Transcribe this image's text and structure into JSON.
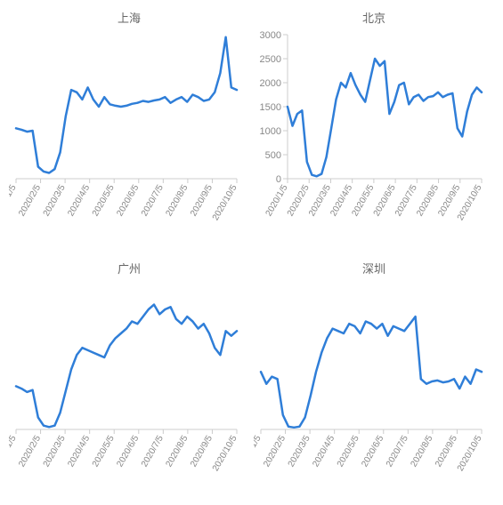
{
  "global": {
    "background_color": "#ffffff",
    "line_color": "#2f7ed8",
    "line_width": 2.5,
    "axis_color": "#cccccc",
    "label_color": "#888888",
    "title_color": "#666666",
    "title_fontsize": 13,
    "tick_fontsize": 11,
    "xlabel_fontsize": 10,
    "xlabel_rotation_deg": -60,
    "x_labels": [
      "2020/1/5",
      "2020/2/5",
      "2020/3/5",
      "2020/4/5",
      "2020/5/5",
      "2020/6/5",
      "2020/7/5",
      "2020/8/5",
      "2020/9/5",
      "2020/10/5"
    ]
  },
  "charts": [
    {
      "id": "shanghai",
      "title": "上海",
      "type": "line",
      "show_y_axis": false,
      "ylim": [
        0,
        3000
      ],
      "values": [
        1050,
        1020,
        980,
        1000,
        250,
        150,
        120,
        200,
        550,
        1300,
        1850,
        1800,
        1650,
        1900,
        1650,
        1500,
        1700,
        1550,
        1520,
        1500,
        1520,
        1560,
        1580,
        1620,
        1600,
        1630,
        1650,
        1700,
        1580,
        1650,
        1700,
        1600,
        1750,
        1700,
        1620,
        1650,
        1800,
        2200,
        2950,
        1900,
        1850
      ]
    },
    {
      "id": "beijing",
      "title": "北京",
      "type": "line",
      "show_y_axis": true,
      "ylim": [
        0,
        3000
      ],
      "ytick_step": 500,
      "values": [
        1500,
        1100,
        1350,
        1420,
        350,
        80,
        50,
        100,
        450,
        1050,
        1650,
        2000,
        1900,
        2200,
        1950,
        1750,
        1600,
        2050,
        2500,
        2350,
        2450,
        1350,
        1600,
        1950,
        2000,
        1550,
        1700,
        1750,
        1620,
        1700,
        1720,
        1800,
        1700,
        1750,
        1780,
        1050,
        880,
        1400,
        1750,
        1900,
        1800
      ]
    },
    {
      "id": "guangzhou",
      "title": "广州",
      "type": "line",
      "show_y_axis": false,
      "ylim": [
        0,
        3000
      ],
      "values": [
        900,
        850,
        780,
        820,
        250,
        80,
        50,
        80,
        350,
        800,
        1250,
        1550,
        1700,
        1650,
        1600,
        1550,
        1500,
        1750,
        1900,
        2000,
        2100,
        2250,
        2200,
        2350,
        2500,
        2600,
        2400,
        2500,
        2550,
        2300,
        2200,
        2350,
        2250,
        2100,
        2200,
        2000,
        1700,
        1550,
        2050,
        1950,
        2050
      ]
    },
    {
      "id": "shenzhen",
      "title": "深圳",
      "type": "line",
      "show_y_axis": false,
      "ylim": [
        0,
        3000
      ],
      "values": [
        1200,
        950,
        1100,
        1050,
        300,
        60,
        40,
        60,
        250,
        700,
        1200,
        1600,
        1900,
        2100,
        2050,
        2000,
        2200,
        2150,
        2000,
        2250,
        2200,
        2100,
        2200,
        1950,
        2150,
        2100,
        2050,
        2200,
        2350,
        1050,
        950,
        1000,
        1020,
        980,
        1000,
        1050,
        850,
        1100,
        950,
        1250,
        1200
      ]
    }
  ]
}
